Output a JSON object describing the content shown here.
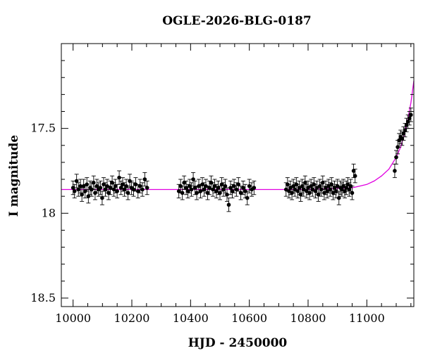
{
  "chart_data": {
    "type": "scatter",
    "title": "OGLE-2026-BLG-0187",
    "xlabel": "HJD - 2450000",
    "ylabel": "I magnitude",
    "xlim": [
      9960,
      11160
    ],
    "ylim": [
      17.0,
      18.55
    ],
    "y_inverted": true,
    "x_ticks": [
      10000,
      10200,
      10400,
      10600,
      10800,
      11000
    ],
    "x_tick_labels": [
      "10000",
      "10200",
      "10400",
      "10600",
      "10800",
      "11000"
    ],
    "y_ticks": [
      17.5,
      18.0,
      18.5
    ],
    "y_tick_labels": [
      "17.5",
      "18",
      "18.5"
    ],
    "grid": false,
    "legend": "none",
    "colors": {
      "points": "#000000",
      "model": "#e000e0",
      "axes": "#000000"
    },
    "series": [
      {
        "kind": "points-with-errorbars",
        "x": [
          10000,
          10005,
          10012,
          10018,
          10025,
          10030,
          10036,
          10041,
          10047,
          10052,
          10058,
          10063,
          10070,
          10075,
          10081,
          10087,
          10093,
          10099,
          10104,
          10110,
          10116,
          10121,
          10127,
          10133,
          10139,
          10144,
          10150,
          10157,
          10163,
          10169,
          10175,
          10181,
          10187,
          10193,
          10199,
          10206,
          10213,
          10221,
          10228,
          10236,
          10244,
          10252,
          10360,
          10366,
          10372,
          10378,
          10385,
          10391,
          10397,
          10403,
          10409,
          10415,
          10421,
          10428,
          10434,
          10440,
          10446,
          10452,
          10458,
          10464,
          10470,
          10476,
          10482,
          10488,
          10494,
          10500,
          10506,
          10512,
          10518,
          10524,
          10530,
          10536,
          10542,
          10548,
          10556,
          10563,
          10571,
          10579,
          10586,
          10593,
          10600,
          10608,
          10616,
          10725,
          10730,
          10735,
          10740,
          10745,
          10750,
          10755,
          10760,
          10765,
          10770,
          10775,
          10780,
          10785,
          10790,
          10795,
          10800,
          10805,
          10810,
          10815,
          10820,
          10825,
          10830,
          10835,
          10840,
          10845,
          10850,
          10855,
          10860,
          10865,
          10870,
          10875,
          10880,
          10885,
          10890,
          10895,
          10900,
          10905,
          10910,
          10915,
          10920,
          10925,
          10930,
          10935,
          10940,
          10945,
          10950,
          10955,
          10960,
          11095,
          11100,
          11105,
          11110,
          11115,
          11120,
          11125,
          11130,
          11135,
          11140,
          11145,
          11150
        ],
        "y": [
          17.85,
          17.87,
          17.81,
          17.86,
          17.84,
          17.89,
          17.84,
          17.87,
          17.83,
          17.9,
          17.85,
          17.86,
          17.82,
          17.88,
          17.84,
          17.86,
          17.85,
          17.91,
          17.83,
          17.86,
          17.84,
          17.88,
          17.85,
          17.82,
          17.86,
          17.84,
          17.87,
          17.79,
          17.85,
          17.83,
          17.86,
          17.84,
          17.88,
          17.81,
          17.85,
          17.86,
          17.83,
          17.87,
          17.84,
          17.86,
          17.8,
          17.85,
          17.87,
          17.84,
          17.88,
          17.82,
          17.85,
          17.87,
          17.84,
          17.86,
          17.8,
          17.85,
          17.88,
          17.84,
          17.87,
          17.83,
          17.86,
          17.84,
          17.88,
          17.85,
          17.82,
          17.86,
          17.84,
          17.87,
          17.85,
          17.88,
          17.83,
          17.86,
          17.84,
          17.89,
          17.95,
          17.85,
          17.87,
          17.84,
          17.86,
          17.83,
          17.88,
          17.85,
          17.87,
          17.91,
          17.84,
          17.86,
          17.85,
          17.86,
          17.83,
          17.87,
          17.85,
          17.88,
          17.84,
          17.86,
          17.83,
          17.87,
          17.85,
          17.89,
          17.84,
          17.86,
          17.82,
          17.87,
          17.85,
          17.88,
          17.84,
          17.86,
          17.83,
          17.87,
          17.85,
          17.89,
          17.84,
          17.86,
          17.82,
          17.88,
          17.85,
          17.87,
          17.84,
          17.86,
          17.83,
          17.88,
          17.85,
          17.87,
          17.84,
          17.91,
          17.85,
          17.86,
          17.84,
          17.87,
          17.85,
          17.83,
          17.86,
          17.84,
          17.88,
          17.75,
          17.78,
          17.75,
          17.67,
          17.61,
          17.57,
          17.55,
          17.56,
          17.53,
          17.51,
          17.48,
          17.46,
          17.44,
          17.42
        ],
        "y_error": 0.04
      },
      {
        "kind": "model-curve",
        "x": [
          9960,
          10000,
          10200,
          10400,
          10600,
          10800,
          10950,
          10975,
          11000,
          11025,
          11050,
          11075,
          11100,
          11115,
          11130,
          11140,
          11150,
          11160
        ],
        "y": [
          17.86,
          17.86,
          17.86,
          17.86,
          17.86,
          17.86,
          17.85,
          17.84,
          17.83,
          17.81,
          17.78,
          17.74,
          17.67,
          17.61,
          17.52,
          17.44,
          17.35,
          17.22
        ]
      }
    ]
  }
}
